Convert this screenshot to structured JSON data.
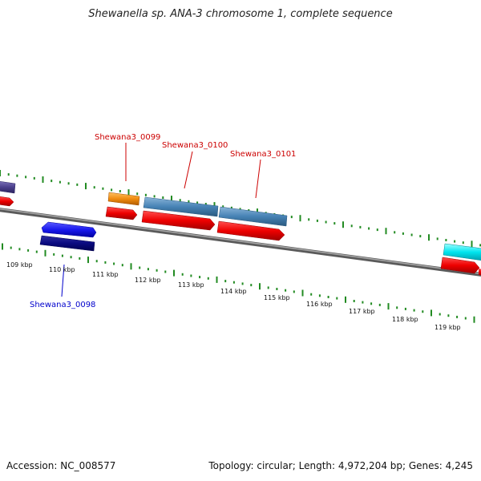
{
  "title": "Shewanella sp. ANA-3 chromosome 1, complete sequence",
  "footer": {
    "accession": "Accession: NC_008577",
    "summary": "Topology: circular; Length: 4,972,204 bp; Genes: 4,245"
  },
  "scale": {
    "unit": "kbp",
    "ticks": [
      "109 kbp",
      "110 kbp",
      "111 kbp",
      "112 kbp",
      "113 kbp",
      "114 kbp",
      "115 kbp",
      "116 kbp",
      "117 kbp",
      "118 kbp",
      "119 kbp"
    ]
  },
  "genes": [
    {
      "label": "Shewana3_0098",
      "label_color": "#0000cc"
    },
    {
      "label": "Shewana3_0099",
      "label_color": "#cc0000"
    },
    {
      "label": "Shewana3_0100",
      "label_color": "#cc0000"
    },
    {
      "label": "Shewana3_0101",
      "label_color": "#cc0000"
    }
  ],
  "colors": {
    "backbone": "#808080",
    "tick": "#228b22",
    "cds": "#ee0000",
    "gene_blue": "#1a1aee",
    "gene_navy": "#0a0a80",
    "gene_orange": "#f08c10",
    "gene_steelblue": "#4682b4",
    "gene_purple": "#4b3f8c",
    "gene_cyan": "#00e5ee"
  }
}
